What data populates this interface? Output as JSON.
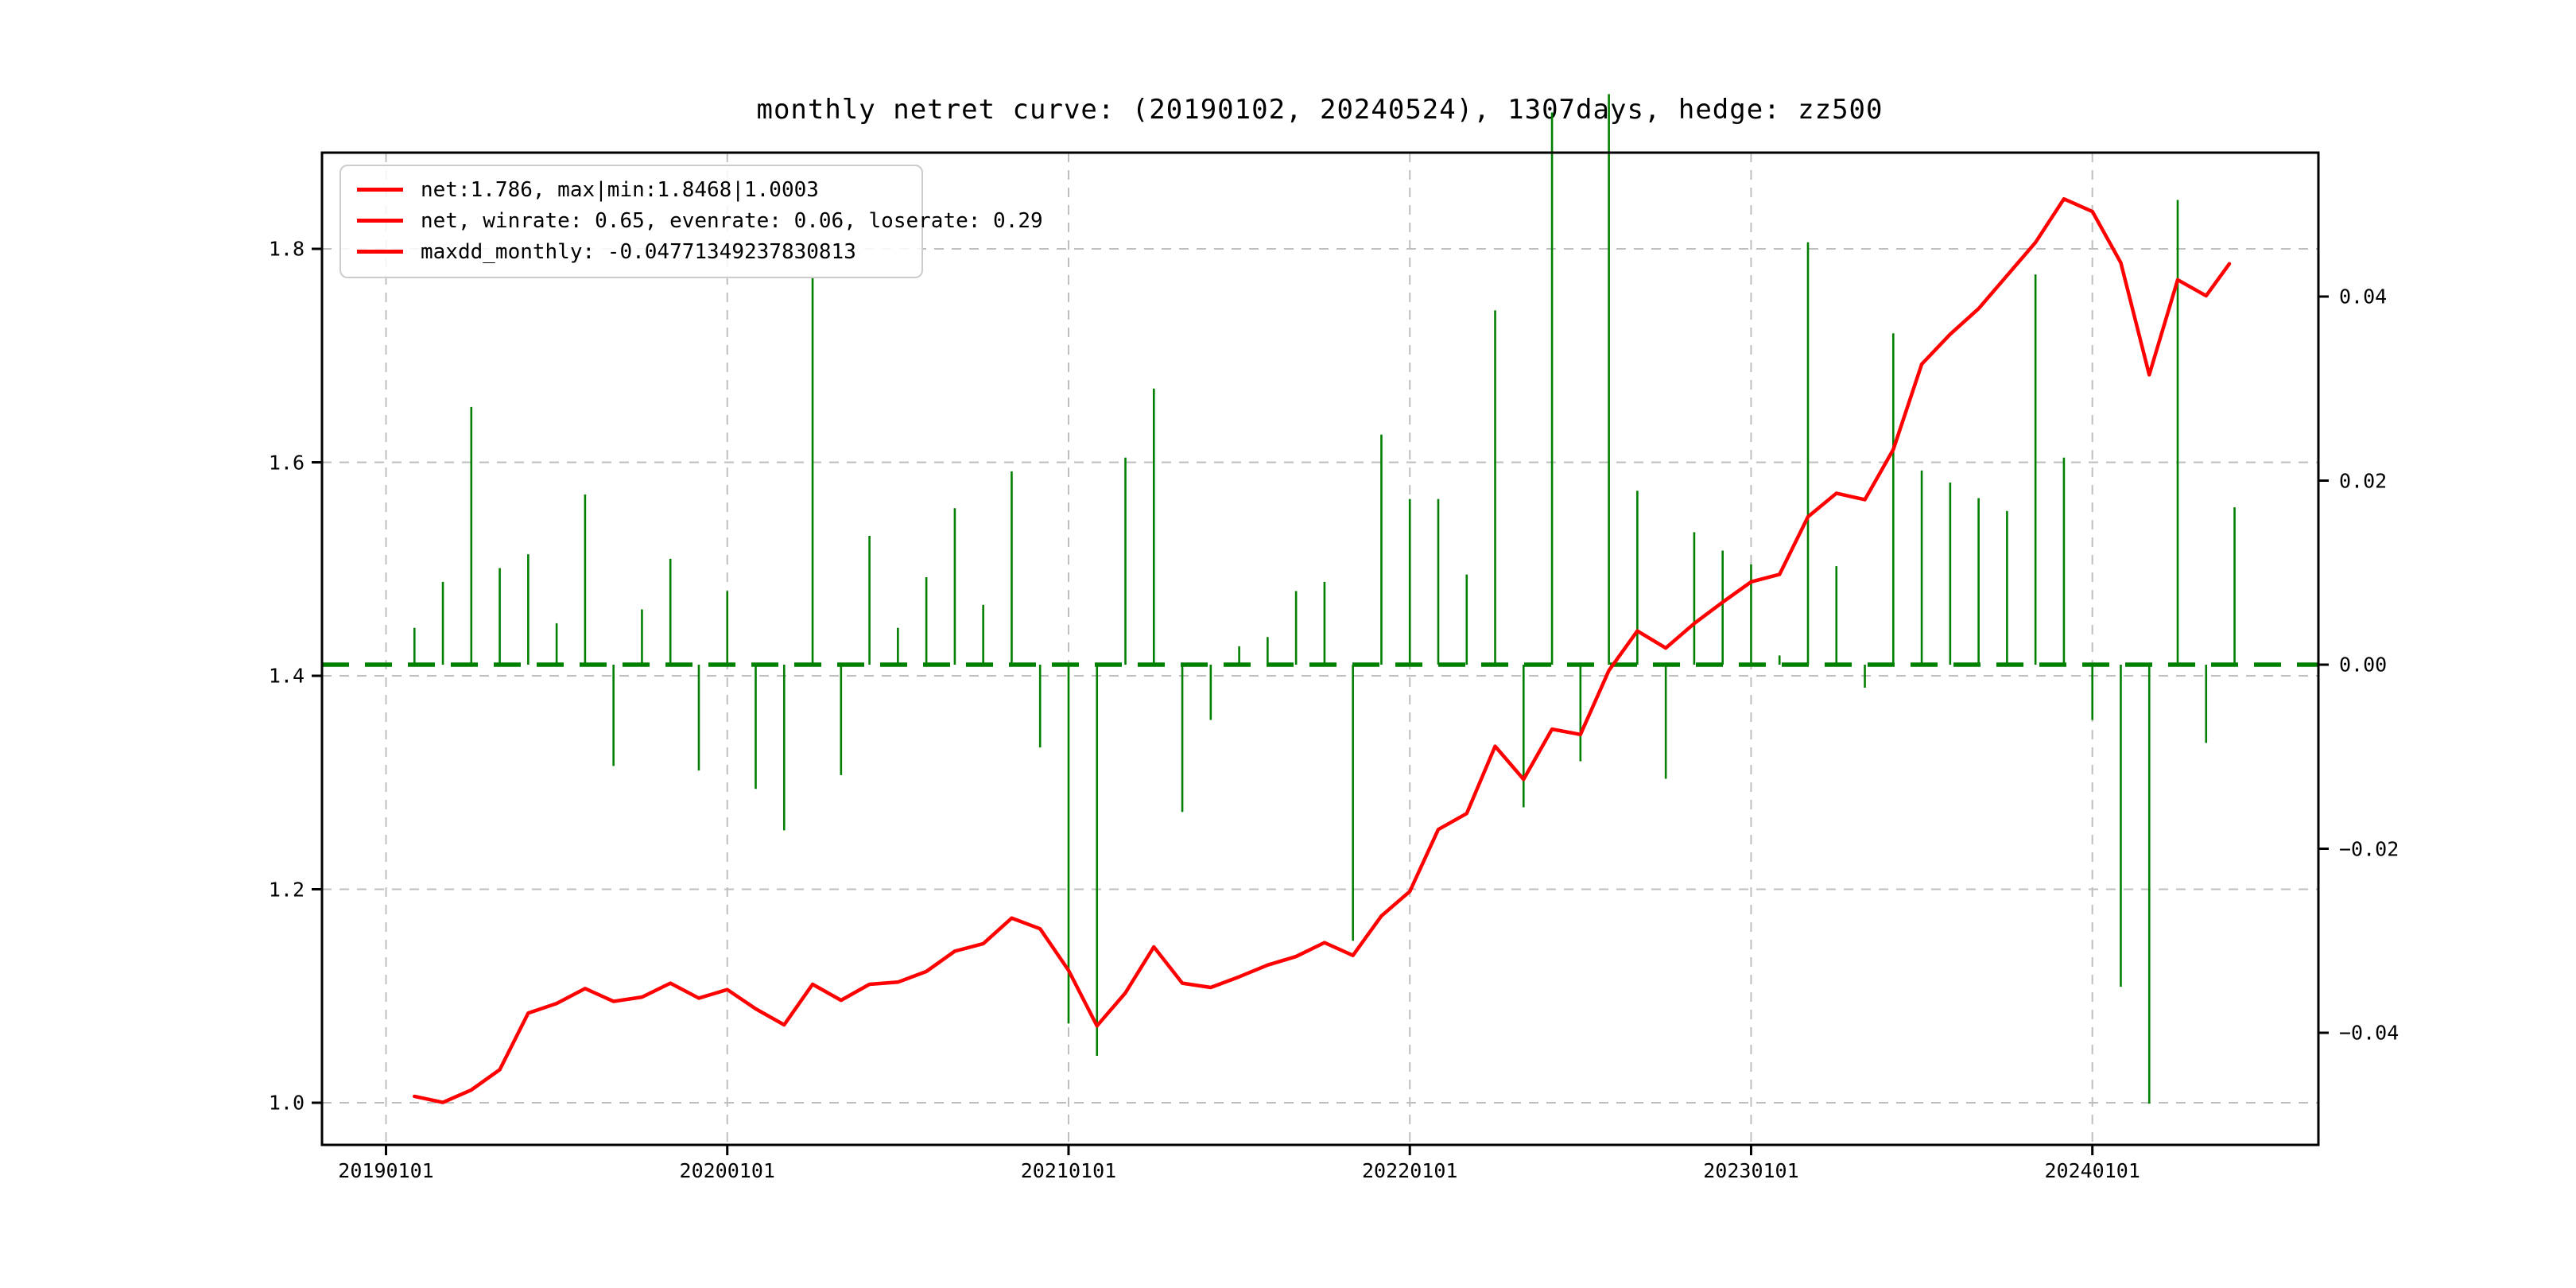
{
  "chart": {
    "title": "monthly netret curve: (20190102, 20240524), 1307days, hedge: zz500"
  },
  "legend": {
    "items": [
      {
        "label": "net:1.786, max|min:1.8468|1.0003",
        "swatch_color": "#ff0000"
      },
      {
        "label": "net, winrate: 0.65, evenrate: 0.06, loserate: 0.29",
        "swatch_color": "#ff0000"
      },
      {
        "label": "maxdd_monthly: -0.04771349237830813",
        "swatch_color": "#ff0000"
      }
    ]
  },
  "chart_data": {
    "type": "line+bar",
    "title": "monthly netret curve: (20190102, 20240524), 1307days, hedge: zz500",
    "start_date": "20190102",
    "end_date": "20240524",
    "days": 1307,
    "hedge": "zz500",
    "grid": true,
    "colors": {
      "net_line": "#ff0000",
      "return_bar": "#007f00",
      "zero_line": "#008000",
      "gridline": "#bfbfbf",
      "axis": "#000000"
    },
    "x_axis": {
      "tick_labels": [
        "20190101",
        "20200101",
        "20210101",
        "20220101",
        "20230101",
        "20240101"
      ]
    },
    "left_axis": {
      "series": "net",
      "tick_labels": [
        "1.0",
        "1.2",
        "1.4",
        "1.6",
        "1.8"
      ],
      "tick_values": [
        1.0,
        1.2,
        1.4,
        1.6,
        1.8
      ],
      "range_note": "net value axis"
    },
    "right_axis": {
      "series": "monthly_return",
      "tick_labels": [
        "0.04",
        "0.02",
        "0.00",
        "−0.02",
        "−0.04"
      ],
      "tick_values": [
        0.04,
        0.02,
        0.0,
        -0.02,
        -0.04
      ],
      "zero_line": 0.0
    },
    "months": [
      "20190131",
      "20190228",
      "20190331",
      "20190430",
      "20190531",
      "20190630",
      "20190731",
      "20190831",
      "20190930",
      "20191031",
      "20191130",
      "20191231",
      "20200131",
      "20200229",
      "20200331",
      "20200430",
      "20200531",
      "20200630",
      "20200731",
      "20200831",
      "20200930",
      "20201031",
      "20201130",
      "20201231",
      "20210131",
      "20210228",
      "20210331",
      "20210430",
      "20210531",
      "20210630",
      "20210731",
      "20210831",
      "20210930",
      "20211031",
      "20211130",
      "20211231",
      "20220131",
      "20220228",
      "20220331",
      "20220430",
      "20220531",
      "20220630",
      "20220731",
      "20220831",
      "20220930",
      "20221031",
      "20221130",
      "20221231",
      "20230131",
      "20230228",
      "20230331",
      "20230430",
      "20230531",
      "20230630",
      "20230731",
      "20230831",
      "20230930",
      "20231031",
      "20231130",
      "20231231",
      "20240131",
      "20240229",
      "20240331",
      "20240430",
      "20240524"
    ],
    "series": [
      {
        "name": "net",
        "type": "line",
        "axis": "left",
        "color": "#ff0000",
        "stats": {
          "final": 1.786,
          "max": 1.8468,
          "min": 1.0003
        },
        "values": [
          1.006,
          1.0003,
          1.012,
          1.031,
          1.084,
          1.093,
          1.107,
          1.095,
          1.099,
          1.112,
          1.098,
          1.106,
          1.088,
          1.073,
          1.111,
          1.096,
          1.111,
          1.113,
          1.123,
          1.142,
          1.149,
          1.173,
          1.163,
          1.124,
          1.072,
          1.103,
          1.146,
          1.112,
          1.108,
          1.118,
          1.129,
          1.137,
          1.15,
          1.138,
          1.175,
          1.198,
          1.256,
          1.271,
          1.334,
          1.303,
          1.35,
          1.345,
          1.405,
          1.442,
          1.426,
          1.449,
          1.469,
          1.488,
          1.495,
          1.549,
          1.571,
          1.565,
          1.612,
          1.692,
          1.72,
          1.744,
          1.775,
          1.806,
          1.8468,
          1.835,
          1.787,
          1.682,
          1.771,
          1.756,
          1.786
        ]
      },
      {
        "name": "monthly_return",
        "type": "bar",
        "axis": "right",
        "color": "#007f00",
        "stats": {
          "winrate": 0.65,
          "evenrate": 0.06,
          "loserate": 0.29,
          "maxdd_monthly": -0.04771349237830813
        },
        "values": [
          0.004,
          0.009,
          0.028,
          0.0105,
          0.012,
          0.0045,
          0.0185,
          -0.011,
          0.006,
          0.0115,
          -0.0115,
          0.008,
          -0.0135,
          -0.018,
          0.042,
          -0.012,
          0.014,
          0.004,
          0.0095,
          0.017,
          0.0065,
          0.021,
          -0.009,
          -0.039,
          -0.0425,
          0.0225,
          0.03,
          -0.016,
          -0.006,
          0.002,
          0.003,
          0.008,
          0.009,
          -0.03,
          0.025,
          0.018,
          0.018,
          0.0098,
          0.0385,
          -0.0155,
          0.06,
          -0.0105,
          0.062,
          0.0189,
          -0.0124,
          0.0144,
          0.0124,
          0.0109,
          0.001,
          0.0459,
          0.0107,
          -0.0025,
          0.036,
          0.0211,
          0.0198,
          0.0181,
          0.0167,
          0.0424,
          0.0225,
          -0.006,
          -0.035,
          -0.0477,
          0.0505,
          -0.0085,
          0.0171
        ]
      }
    ]
  }
}
